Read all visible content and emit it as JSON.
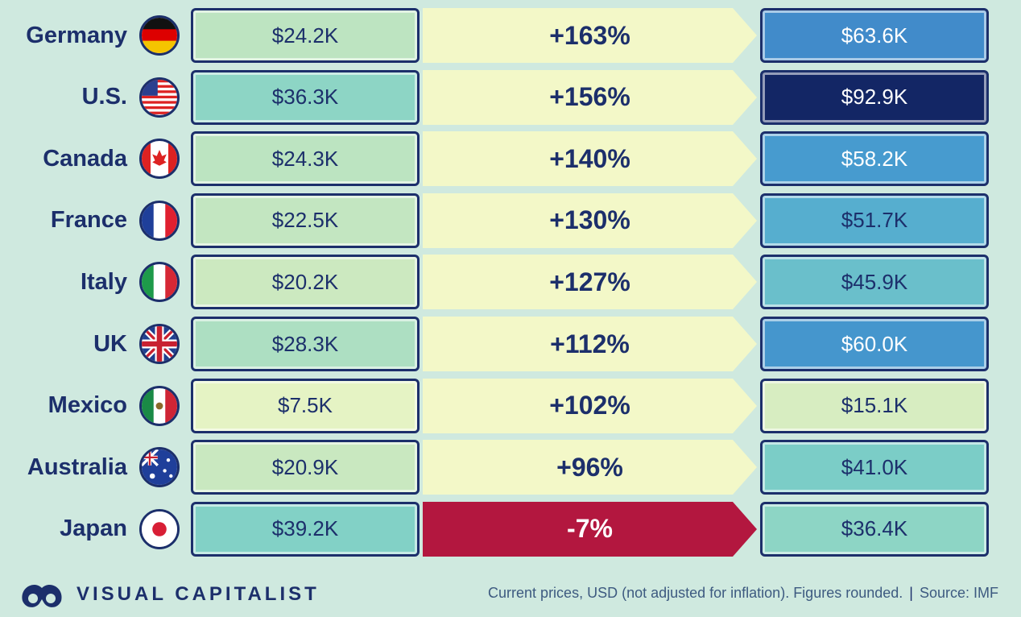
{
  "chart_data": {
    "type": "table",
    "rows": [
      {
        "country": "Germany",
        "flag": "germany-flag-icon",
        "value_start": "$24.2K",
        "change": "+163%",
        "value_end": "$63.6K",
        "start_num": 24.2,
        "end_num": 63.6,
        "change_num": 163
      },
      {
        "country": "U.S.",
        "flag": "us-flag-icon",
        "value_start": "$36.3K",
        "change": "+156%",
        "value_end": "$92.9K",
        "start_num": 36.3,
        "end_num": 92.9,
        "change_num": 156
      },
      {
        "country": "Canada",
        "flag": "canada-flag-icon",
        "value_start": "$24.3K",
        "change": "+140%",
        "value_end": "$58.2K",
        "start_num": 24.3,
        "end_num": 58.2,
        "change_num": 140
      },
      {
        "country": "France",
        "flag": "france-flag-icon",
        "value_start": "$22.5K",
        "change": "+130%",
        "value_end": "$51.7K",
        "start_num": 22.5,
        "end_num": 51.7,
        "change_num": 130
      },
      {
        "country": "Italy",
        "flag": "italy-flag-icon",
        "value_start": "$20.2K",
        "change": "+127%",
        "value_end": "$45.9K",
        "start_num": 20.2,
        "end_num": 45.9,
        "change_num": 127
      },
      {
        "country": "UK",
        "flag": "uk-flag-icon",
        "value_start": "$28.3K",
        "change": "+112%",
        "value_end": "$60.0K",
        "start_num": 28.3,
        "end_num": 60.0,
        "change_num": 112
      },
      {
        "country": "Mexico",
        "flag": "mexico-flag-icon",
        "value_start": "$7.5K",
        "change": "+102%",
        "value_end": "$15.1K",
        "start_num": 7.5,
        "end_num": 15.1,
        "change_num": 102
      },
      {
        "country": "Australia",
        "flag": "australia-flag-icon",
        "value_start": "$20.9K",
        "change": "+96%",
        "value_end": "$41.0K",
        "start_num": 20.9,
        "end_num": 41.0,
        "change_num": 96
      },
      {
        "country": "Japan",
        "flag": "japan-flag-icon",
        "value_start": "$39.2K",
        "change": "-7%",
        "value_end": "$36.4K",
        "start_num": 39.2,
        "end_num": 36.4,
        "change_num": -7
      }
    ],
    "units": "USD thousands"
  },
  "footer": {
    "brand": "VISUAL CAPITALIST",
    "logo_icon": "visual-capitalist-logo-icon",
    "note": "Current prices, USD (not adjusted for inflation). Figures rounded.",
    "source": "Source: IMF"
  },
  "colors": {
    "background": "#cfe9df",
    "navy": "#1c2f6b",
    "positive_arrow": "#f3f8c8",
    "negative_arrow": "#b3173f"
  }
}
